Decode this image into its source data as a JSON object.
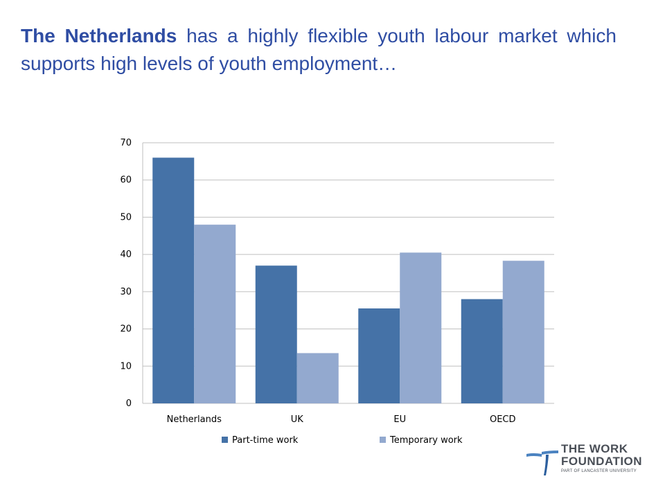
{
  "title": {
    "bold_part": "The Netherlands",
    "rest": " has a highly flexible youth labour market which supports high levels of youth employment…"
  },
  "colors": {
    "title": "#2f4da3",
    "part_time": "#4572a7",
    "temporary": "#93a9cf",
    "grid": "#bfbfbf"
  },
  "chart_data": {
    "type": "bar",
    "categories": [
      "Netherlands",
      "UK",
      "EU",
      "OECD"
    ],
    "series": [
      {
        "name": "Part-time work",
        "values": [
          66,
          37,
          25.5,
          28
        ]
      },
      {
        "name": "Temporary work",
        "values": [
          48,
          13.5,
          40.5,
          38.3
        ]
      }
    ],
    "yticks": [
      "0",
      "10",
      "20",
      "30",
      "40",
      "50",
      "60",
      "70"
    ],
    "ylim": [
      0,
      70
    ],
    "grid": true,
    "legend": "bottom"
  },
  "logo": {
    "line1": "THE WORK",
    "line2": "FOUNDATION",
    "sub": "PART OF LANCASTER UNIVERSITY"
  }
}
